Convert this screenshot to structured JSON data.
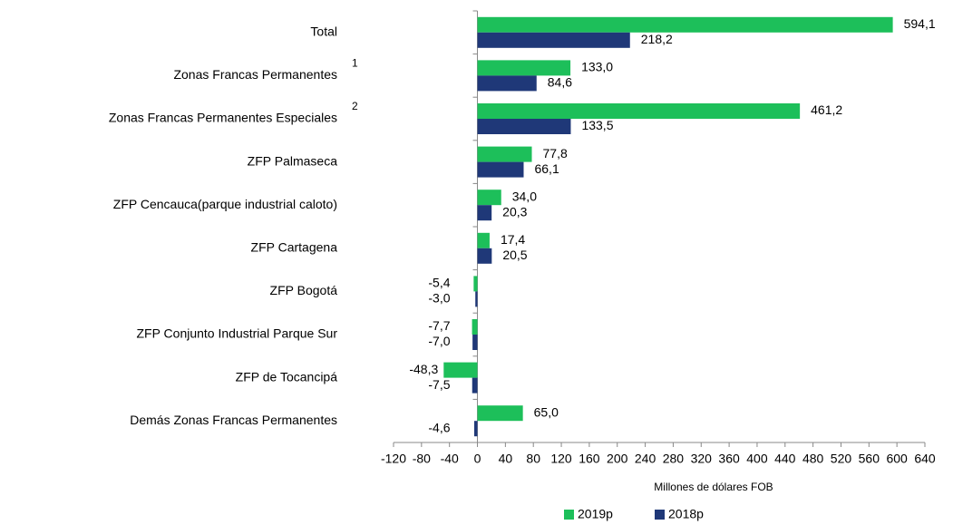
{
  "chart_data": {
    "type": "hbar",
    "categories": [
      "Total",
      "Zonas Francas Permanentes",
      "Zonas Francas Permanentes Especiales",
      "ZFP Palmaseca",
      "ZFP Cencauca(parque industrial caloto)",
      "ZFP Cartagena",
      "ZFP Bogotá",
      "ZFP Conjunto Industrial Parque Sur",
      "ZFP de Tocancipá",
      "Demás Zonas Francas Permanentes"
    ],
    "category_superscripts": [
      null,
      "1",
      "2",
      null,
      null,
      null,
      null,
      null,
      null,
      null
    ],
    "series": [
      {
        "name": "2019p",
        "color": "#1dbf5a",
        "values": [
          594.1,
          133.0,
          461.2,
          77.8,
          34.0,
          17.4,
          -5.4,
          -7.7,
          -48.3,
          65.0
        ],
        "value_labels": [
          "594,1",
          "133,0",
          "461,2",
          "77,8",
          "34,0",
          "17,4",
          "-5,4",
          "-7,7",
          "-48,3",
          "65,0"
        ]
      },
      {
        "name": "2018p",
        "color": "#1f3878",
        "values": [
          218.2,
          84.6,
          133.5,
          66.1,
          20.3,
          20.5,
          -3.0,
          -7.0,
          -7.5,
          -4.6
        ],
        "value_labels": [
          "218,2",
          "84,6",
          "133,5",
          "66,1",
          "20,3",
          "20,5",
          "-3,0",
          "-7,0",
          "-7,5",
          "-4,6"
        ]
      }
    ],
    "xlabel": "Millones de dólares FOB",
    "xlim": [
      -120,
      640
    ],
    "xticks": [
      -120,
      -80,
      -40,
      0,
      40,
      80,
      120,
      160,
      200,
      240,
      280,
      320,
      360,
      400,
      440,
      480,
      520,
      560,
      600,
      640
    ],
    "legend": "bottom"
  }
}
